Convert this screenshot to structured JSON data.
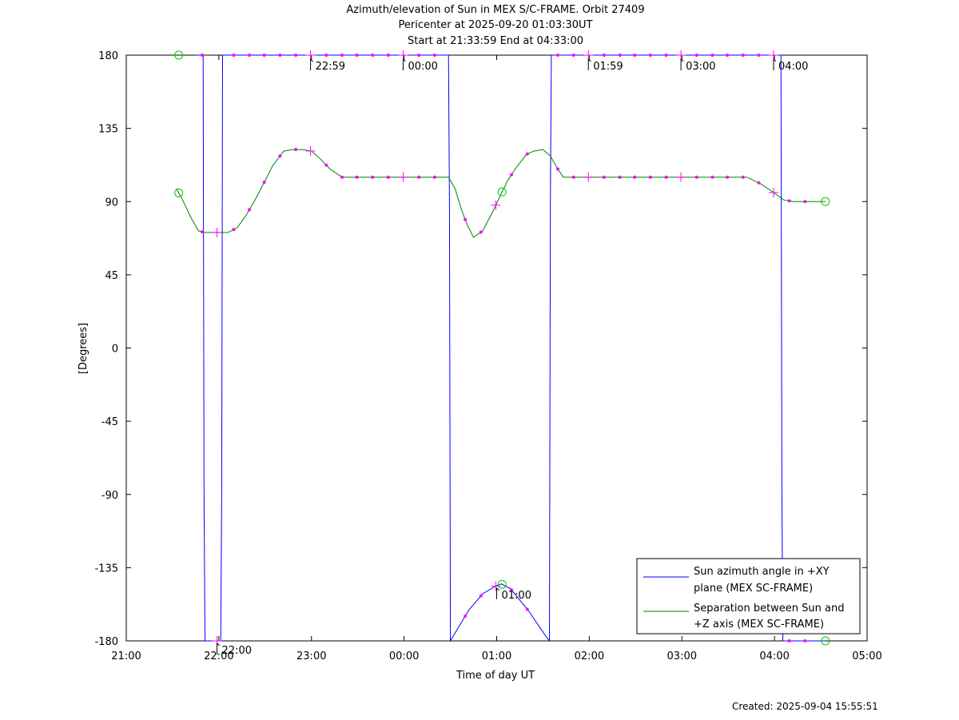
{
  "chart_data": {
    "type": "line",
    "title": "Azimuth/elevation of Sun in MEX S/C-FRAME.  Orbit 27409",
    "subtitle_1": "Pericenter at 2025-09-20 01:03:30UT",
    "subtitle_2": "Start at 21:33:59 End at 04:33:00",
    "xlabel": "Time of day UT",
    "ylabel": "[Degrees]",
    "xlim_hours": [
      21,
      29
    ],
    "ylim": [
      -180,
      180
    ],
    "x_ticks": [
      "21:00",
      "22:00",
      "23:00",
      "00:00",
      "01:00",
      "02:00",
      "03:00",
      "04:00",
      "05:00"
    ],
    "y_ticks": [
      180,
      135,
      90,
      45,
      0,
      -45,
      -90,
      -135,
      -180
    ],
    "legend_position": "bottom-right",
    "series": [
      {
        "name": "Sun azimuth angle in +XY plane (MEX SC-FRAME)",
        "legend_lines": [
          "Sun azimuth angle in +XY",
          "plane (MEX SC-FRAME)"
        ],
        "color": "#0000ff",
        "points_hours": [
          [
            21.75,
            180
          ],
          [
            21.82,
            180
          ],
          [
            21.83,
            180
          ],
          [
            21.84,
            -90
          ],
          [
            21.85,
            -180
          ],
          [
            22.0,
            -180
          ],
          [
            22.02,
            -180
          ],
          [
            22.03,
            -90
          ],
          [
            22.04,
            180
          ],
          [
            22.05,
            180
          ],
          [
            23.0,
            180
          ],
          [
            24.0,
            180
          ],
          [
            24.48,
            180
          ],
          [
            24.49,
            90
          ],
          [
            24.5,
            -180
          ],
          [
            24.7,
            -161
          ],
          [
            24.85,
            -151
          ],
          [
            25.0,
            -146
          ],
          [
            25.05,
            -145
          ],
          [
            25.15,
            -148
          ],
          [
            25.35,
            -162
          ],
          [
            25.53,
            -177
          ],
          [
            25.57,
            -180
          ],
          [
            25.58,
            90
          ],
          [
            25.59,
            180
          ],
          [
            26.0,
            180
          ],
          [
            27.0,
            180
          ],
          [
            28.0,
            180
          ],
          [
            28.07,
            180
          ],
          [
            28.08,
            -90
          ],
          [
            28.09,
            -180
          ],
          [
            28.55,
            -180
          ]
        ]
      },
      {
        "name": "Separation between Sun and +Z axis (MEX SC-FRAME)",
        "legend_lines": [
          "Separation between Sun and",
          "+Z axis (MEX SC-FRAME)"
        ],
        "color": "#008000",
        "points_hours": [
          [
            21.54,
            98
          ],
          [
            21.6,
            92
          ],
          [
            21.7,
            80
          ],
          [
            21.78,
            72
          ],
          [
            21.85,
            71
          ],
          [
            22.0,
            71
          ],
          [
            22.1,
            71
          ],
          [
            22.2,
            74
          ],
          [
            22.3,
            82
          ],
          [
            22.4,
            92
          ],
          [
            22.5,
            103
          ],
          [
            22.58,
            112
          ],
          [
            22.7,
            121
          ],
          [
            22.8,
            122
          ],
          [
            22.9,
            122
          ],
          [
            23.0,
            121
          ],
          [
            23.1,
            116
          ],
          [
            23.2,
            110
          ],
          [
            23.33,
            105
          ],
          [
            23.5,
            105
          ],
          [
            24.0,
            105
          ],
          [
            24.25,
            105
          ],
          [
            24.48,
            105
          ],
          [
            24.55,
            98
          ],
          [
            24.62,
            85
          ],
          [
            24.68,
            76
          ],
          [
            24.75,
            68
          ],
          [
            24.85,
            72
          ],
          [
            24.95,
            83
          ],
          [
            25.05,
            95
          ],
          [
            25.12,
            103
          ],
          [
            25.2,
            110
          ],
          [
            25.32,
            119
          ],
          [
            25.4,
            121
          ],
          [
            25.5,
            122
          ],
          [
            25.58,
            118
          ],
          [
            25.66,
            110
          ],
          [
            25.72,
            105
          ],
          [
            26.0,
            105
          ],
          [
            27.0,
            105
          ],
          [
            27.7,
            105
          ],
          [
            27.85,
            101
          ],
          [
            27.98,
            96
          ],
          [
            28.1,
            91
          ],
          [
            28.2,
            90
          ],
          [
            28.3,
            90
          ],
          [
            28.55,
            90
          ]
        ]
      }
    ],
    "markers": {
      "color": "#ff00ff",
      "dot_times_hours": [
        21.82,
        22.16,
        22.33,
        22.49,
        22.66,
        22.83,
        23.16,
        23.33,
        23.49,
        23.66,
        23.83,
        24.16,
        24.33,
        24.66,
        24.83,
        25.16,
        25.33,
        25.66,
        25.83,
        26.16,
        26.33,
        26.49,
        26.66,
        26.83,
        27.16,
        27.33,
        27.49,
        27.66,
        27.83,
        28.16,
        28.33
      ],
      "cross_times_hours": [
        21.98,
        22.99,
        23.99,
        24.99,
        25.99,
        26.99,
        27.99
      ],
      "start_end_circles_hours": [
        21.5664,
        28.55
      ],
      "pericenter_hours": 25.0583
    },
    "annotations": [
      {
        "text": "22:59",
        "x_hours": 22.99,
        "y": 180
      },
      {
        "text": "00:00",
        "x_hours": 23.99,
        "y": 180
      },
      {
        "text": "01:59",
        "x_hours": 25.99,
        "y": 180
      },
      {
        "text": "03:00",
        "x_hours": 26.99,
        "y": 180
      },
      {
        "text": "04:00",
        "x_hours": 27.99,
        "y": 180
      },
      {
        "text": "22:00",
        "x_hours": 21.98,
        "y": -180
      },
      {
        "text": "01:00",
        "x_hours": 25.0,
        "y": -146
      }
    ]
  },
  "footer": {
    "created": "Created: 2025-09-04 15:55:51"
  }
}
